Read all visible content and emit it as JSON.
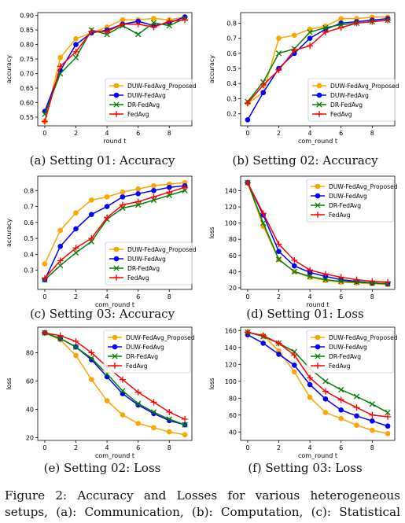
{
  "legend_labels": [
    "DUW-FedAvg_Proposed",
    "DUW-FedAvg",
    "DR-FedAvg",
    "FedAvg"
  ],
  "series_colors": [
    "#ffa500",
    "#0000ff",
    "#008000",
    "#ff0000"
  ],
  "series_markers": [
    "circle",
    "circle",
    "x",
    "plus"
  ],
  "captions": [
    "(a) Setting 01: Accuracy",
    "(b) Setting 02: Accuracy",
    "(c) Setting 03: Accuracy",
    "(d) Setting 01: Loss",
    "(e) Setting 02: Loss",
    "(f) Setting 03: Loss"
  ],
  "figure_caption": {
    "line1_words": [
      "Figure",
      "2:",
      "Accuracy",
      "and",
      "Losses",
      "for",
      "various",
      "heterogeneous"
    ],
    "line2_words": [
      "setups,",
      "(a):",
      "Communication,",
      "(b):",
      "Computation,",
      "(c):",
      "Statistical"
    ]
  },
  "chart_data": [
    {
      "type": "line",
      "xlabel": "round t",
      "ylabel": "accuracy",
      "xlim": [
        -0.45,
        9.45
      ],
      "ylim": [
        0.52,
        0.91
      ],
      "xticks": [
        "0",
        "2",
        "4",
        "6",
        "8"
      ],
      "yticks": [
        "0.55",
        "0.60",
        "0.65",
        "0.70",
        "0.75",
        "0.80",
        "0.85",
        "0.90"
      ],
      "legend": "lower-right",
      "x": [
        0,
        1,
        2,
        3,
        4,
        5,
        6,
        7,
        8,
        9
      ],
      "series": [
        {
          "name": "DUW-FedAvg_Proposed",
          "values": [
            0.535,
            0.755,
            0.82,
            0.84,
            0.86,
            0.885,
            0.885,
            0.89,
            0.885,
            0.895
          ]
        },
        {
          "name": "DUW-FedAvg",
          "values": [
            0.57,
            0.71,
            0.8,
            0.84,
            0.85,
            0.87,
            0.88,
            0.865,
            0.875,
            0.895
          ]
        },
        {
          "name": "DR-FedAvg",
          "values": [
            0.56,
            0.7,
            0.755,
            0.85,
            0.835,
            0.865,
            0.835,
            0.875,
            0.865,
            0.89
          ]
        },
        {
          "name": "FedAvg",
          "values": [
            0.535,
            0.725,
            0.775,
            0.845,
            0.845,
            0.87,
            0.87,
            0.86,
            0.88,
            0.885
          ]
        }
      ]
    },
    {
      "type": "line",
      "xlabel": "com_round t",
      "ylabel": "accuracy",
      "xlim": [
        -0.45,
        9.45
      ],
      "ylim": [
        0.12,
        0.87
      ],
      "xticks": [
        "0",
        "2",
        "4",
        "6",
        "8"
      ],
      "yticks": [
        "0.2",
        "0.3",
        "0.4",
        "0.5",
        "0.6",
        "0.7",
        "0.8"
      ],
      "legend": "lower-right",
      "x": [
        0,
        1,
        2,
        3,
        4,
        5,
        6,
        7,
        8,
        9
      ],
      "series": [
        {
          "name": "DUW-FedAvg_Proposed",
          "values": [
            0.27,
            0.34,
            0.7,
            0.72,
            0.76,
            0.78,
            0.83,
            0.83,
            0.84,
            0.84
          ]
        },
        {
          "name": "DUW-FedAvg",
          "values": [
            0.16,
            0.34,
            0.5,
            0.6,
            0.7,
            0.76,
            0.8,
            0.81,
            0.82,
            0.83
          ]
        },
        {
          "name": "DR-FedAvg",
          "values": [
            0.28,
            0.41,
            0.6,
            0.63,
            0.74,
            0.77,
            0.79,
            0.8,
            0.81,
            0.82
          ]
        },
        {
          "name": "FedAvg",
          "values": [
            0.27,
            0.39,
            0.49,
            0.62,
            0.65,
            0.74,
            0.77,
            0.8,
            0.81,
            0.82
          ]
        }
      ]
    },
    {
      "type": "line",
      "xlabel": "com_round t",
      "ylabel": "accuracy",
      "xlim": [
        -0.45,
        9.45
      ],
      "ylim": [
        0.18,
        0.89
      ],
      "xticks": [
        "0",
        "2",
        "4",
        "6",
        "8"
      ],
      "yticks": [
        "0.3",
        "0.4",
        "0.5",
        "0.6",
        "0.7",
        "0.8"
      ],
      "legend": "lower-right",
      "x": [
        0,
        1,
        2,
        3,
        4,
        5,
        6,
        7,
        8,
        9
      ],
      "series": [
        {
          "name": "DUW-FedAvg_Proposed",
          "values": [
            0.34,
            0.55,
            0.66,
            0.74,
            0.76,
            0.79,
            0.81,
            0.83,
            0.84,
            0.85
          ]
        },
        {
          "name": "DUW-FedAvg",
          "values": [
            0.24,
            0.45,
            0.56,
            0.65,
            0.7,
            0.76,
            0.78,
            0.8,
            0.82,
            0.83
          ]
        },
        {
          "name": "DR-FedAvg",
          "values": [
            0.24,
            0.33,
            0.41,
            0.48,
            0.62,
            0.69,
            0.71,
            0.74,
            0.77,
            0.8
          ]
        },
        {
          "name": "FedAvg",
          "values": [
            0.25,
            0.36,
            0.44,
            0.5,
            0.63,
            0.71,
            0.73,
            0.76,
            0.79,
            0.82
          ]
        }
      ]
    },
    {
      "type": "line",
      "xlabel": "round t",
      "ylabel": "loss",
      "xlim": [
        -0.45,
        9.45
      ],
      "ylim": [
        18,
        158
      ],
      "xticks": [
        "0",
        "2",
        "4",
        "6",
        "8"
      ],
      "yticks": [
        "20",
        "40",
        "60",
        "80",
        "100",
        "120",
        "140"
      ],
      "legend": "upper-right",
      "x": [
        0,
        1,
        2,
        3,
        4,
        5,
        6,
        7,
        8,
        9
      ],
      "series": [
        {
          "name": "DUW-FedAvg_Proposed",
          "values": [
            150,
            96,
            55,
            40,
            33,
            29,
            27,
            26,
            25,
            24
          ]
        },
        {
          "name": "DUW-FedAvg",
          "values": [
            150,
            110,
            65,
            47,
            39,
            34,
            30,
            28,
            26,
            25
          ]
        },
        {
          "name": "DR-FedAvg",
          "values": [
            150,
            100,
            55,
            40,
            34,
            30,
            28,
            27,
            26,
            25
          ]
        },
        {
          "name": "FedAvg",
          "values": [
            150,
            112,
            74,
            54,
            42,
            37,
            33,
            30,
            28,
            27
          ]
        }
      ]
    },
    {
      "type": "line",
      "xlabel": "com_round t",
      "ylabel": "loss",
      "xlim": [
        -0.45,
        9.45
      ],
      "ylim": [
        18,
        98
      ],
      "xticks": [
        "0",
        "2",
        "4",
        "6",
        "8"
      ],
      "yticks": [
        "20",
        "40",
        "60",
        "80"
      ],
      "legend": "upper-right",
      "x": [
        0,
        1,
        2,
        3,
        4,
        5,
        6,
        7,
        8,
        9
      ],
      "series": [
        {
          "name": "DUW-FedAvg_Proposed",
          "values": [
            94,
            89,
            78,
            61,
            46,
            36,
            30,
            27,
            24,
            22
          ]
        },
        {
          "name": "DUW-FedAvg",
          "values": [
            94,
            90,
            84,
            75,
            63,
            51,
            43,
            37,
            32,
            29
          ]
        },
        {
          "name": "DR-FedAvg",
          "values": [
            94,
            90,
            84,
            76,
            65,
            53,
            44,
            38,
            33,
            29
          ]
        },
        {
          "name": "FedAvg",
          "values": [
            94,
            92,
            88,
            80,
            70,
            61,
            52,
            45,
            38,
            33
          ]
        }
      ]
    },
    {
      "type": "line",
      "xlabel": "com_round t",
      "ylabel": "loss",
      "xlim": [
        -0.45,
        9.45
      ],
      "ylim": [
        30,
        164
      ],
      "xticks": [
        "0",
        "2",
        "4",
        "6",
        "8"
      ],
      "yticks": [
        "40",
        "60",
        "80",
        "100",
        "120",
        "140",
        "160"
      ],
      "legend": "upper-right",
      "x": [
        0,
        1,
        2,
        3,
        4,
        5,
        6,
        7,
        8,
        9
      ],
      "series": [
        {
          "name": "DUW-FedAvg_Proposed",
          "values": [
            158,
            154,
            136,
            111,
            81,
            63,
            56,
            48,
            42,
            38
          ]
        },
        {
          "name": "DUW-FedAvg",
          "values": [
            155,
            145,
            132,
            119,
            96,
            79,
            66,
            59,
            53,
            47
          ]
        },
        {
          "name": "DR-FedAvg",
          "values": [
            158,
            153,
            145,
            135,
            115,
            100,
            90,
            82,
            73,
            63
          ]
        },
        {
          "name": "FedAvg",
          "values": [
            158,
            154,
            145,
            131,
            104,
            88,
            78,
            69,
            60,
            58
          ]
        }
      ]
    }
  ]
}
